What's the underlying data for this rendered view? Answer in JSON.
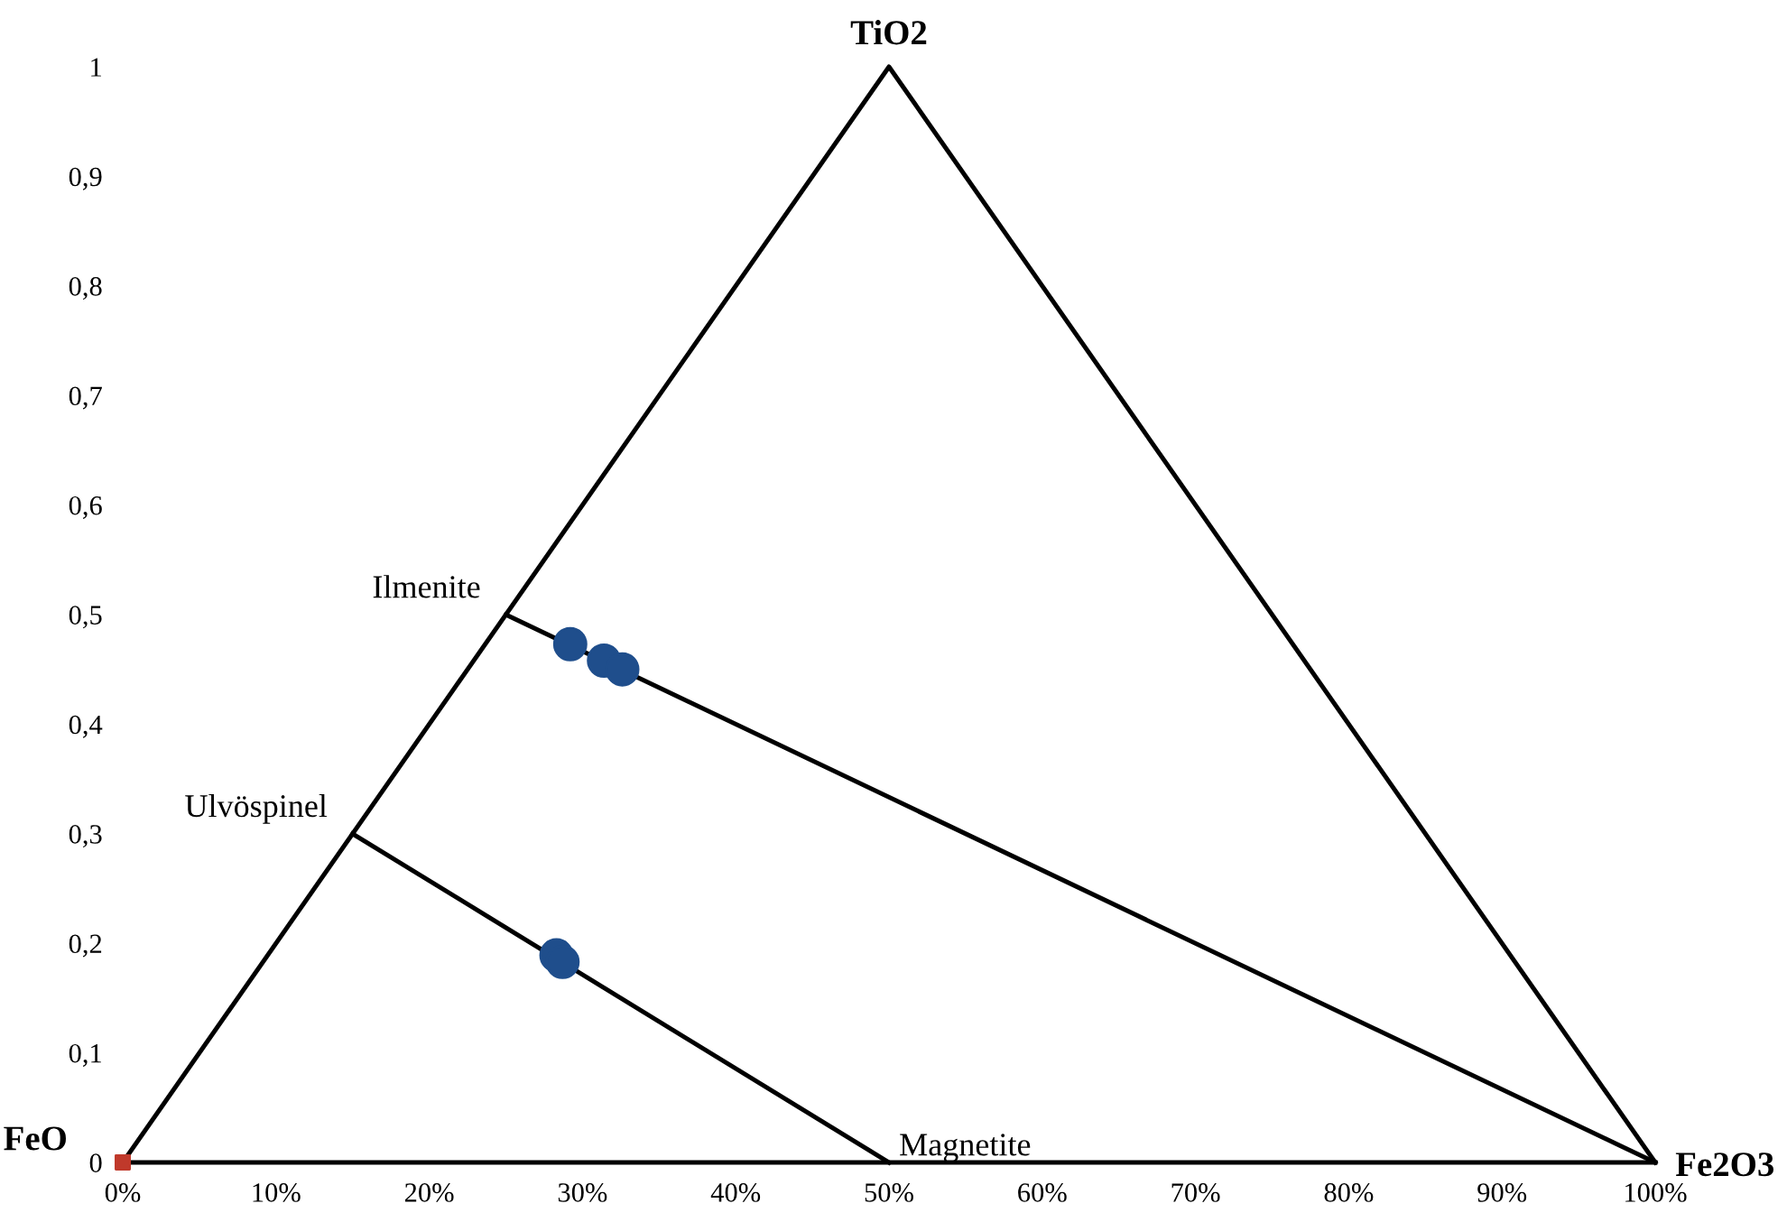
{
  "chart_data": {
    "type": "scatter",
    "xlim": [
      0,
      100
    ],
    "ylim": [
      0,
      1
    ],
    "xticks": [
      {
        "value": 0,
        "label": "0%"
      },
      {
        "value": 10,
        "label": "10%"
      },
      {
        "value": 20,
        "label": "20%"
      },
      {
        "value": 30,
        "label": "30%"
      },
      {
        "value": 40,
        "label": "40%"
      },
      {
        "value": 50,
        "label": "50%"
      },
      {
        "value": 60,
        "label": "60%"
      },
      {
        "value": 70,
        "label": "70%"
      },
      {
        "value": 80,
        "label": "80%"
      },
      {
        "value": 90,
        "label": "90%"
      },
      {
        "value": 100,
        "label": "100%"
      }
    ],
    "yticks": [
      0,
      {
        "value": 0.1,
        "label": "0,1"
      },
      {
        "value": 0.2,
        "label": "0,2"
      },
      {
        "value": 0.3,
        "label": "0,3"
      },
      {
        "value": 0.4,
        "label": "0,4"
      },
      {
        "value": 0.5,
        "label": "0,5"
      },
      {
        "value": 0.6,
        "label": "0,6"
      },
      {
        "value": 0.7,
        "label": "0,7"
      },
      {
        "value": 0.8,
        "label": "0,8"
      },
      {
        "value": 0.9,
        "label": "0,9"
      },
      1
    ],
    "grid": false,
    "legend": false,
    "series": [
      {
        "type": "line",
        "color": "#000000",
        "x": [
          0,
          50,
          100
        ],
        "values": [
          0,
          1,
          0
        ]
      },
      {
        "type": "line",
        "color": "#000000",
        "x": [
          0,
          100
        ],
        "values": [
          0,
          0
        ]
      },
      {
        "type": "line",
        "color": "#000000",
        "x": [
          25,
          100
        ],
        "values": [
          0.5,
          0
        ]
      },
      {
        "type": "line",
        "color": "#000000",
        "x": [
          15,
          50
        ],
        "values": [
          0.3,
          0
        ]
      },
      {
        "type": "scatter",
        "color": "#1f4e8c",
        "marker": "circle",
        "x": [
          29.2,
          31.4,
          32.6,
          28.3,
          28.7
        ],
        "values": [
          0.473,
          0.458,
          0.45,
          0.189,
          0.183
        ]
      },
      {
        "type": "scatter",
        "color": "#c0392b",
        "marker": "square",
        "x": [
          0
        ],
        "values": [
          0
        ]
      }
    ],
    "annotations": [
      {
        "text": "TiO2",
        "x": 50,
        "y": 1
      },
      {
        "text": "FeO",
        "x": 0,
        "y": 0
      },
      {
        "text": "Fe2O3",
        "x": 100,
        "y": 0
      },
      {
        "text": "Ilmenite",
        "x": 25,
        "y": 0.5
      },
      {
        "text": "Ulvöspinel",
        "x": 15,
        "y": 0.3
      },
      {
        "text": "Magnetite",
        "x": 50,
        "y": 0
      }
    ]
  }
}
